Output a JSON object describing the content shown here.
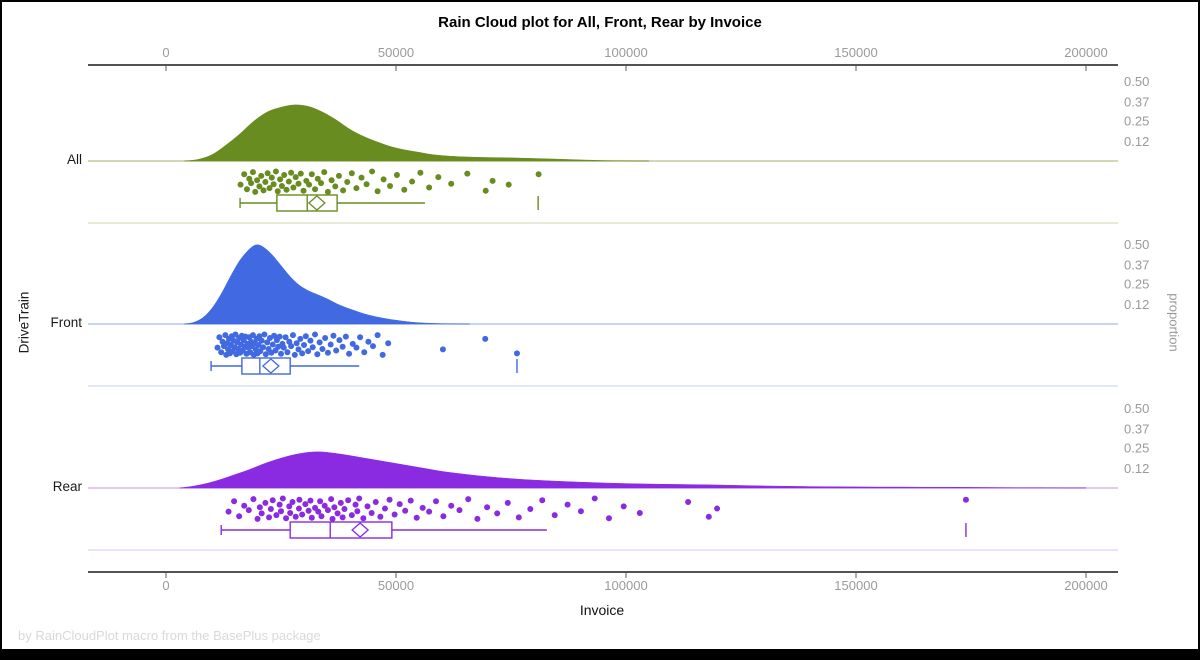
{
  "chart_data": {
    "type": "raincloud",
    "title": "Rain Cloud plot for All, Front, Rear by Invoice",
    "xlabel": "Invoice",
    "ylabel_left": "DriveTrain",
    "ylabel_right": "proportion",
    "footnote": "by RainCloudPlot macro from the BasePlus package",
    "x_ticks": [
      0,
      50000,
      100000,
      150000,
      200000
    ],
    "xlim": [
      -17000,
      207500
    ],
    "proportion_tick_labels": [
      "0.50",
      "0.37",
      "0.25",
      "0.12"
    ],
    "proportion_ticks": [
      0.5,
      0.37,
      0.25,
      0.12
    ],
    "grid": false,
    "legend": "none",
    "axis_text_color": "#9a9a9a",
    "jitter_cycle": [
      0.62,
      0.15,
      0.83,
      0.35,
      0.55,
      0.05,
      0.95,
      0.42,
      0.7,
      0.22,
      0.88,
      0.5,
      0.1,
      0.78,
      0.3,
      0.6,
      0.02,
      0.92,
      0.38,
      0.68,
      0.18,
      0.85,
      0.48,
      0.08,
      0.75,
      0.28,
      0.58,
      0.12,
      0.9,
      0.45
    ],
    "groups": [
      {
        "name": "All",
        "color": "#698C21",
        "light_color": "#c3ca9c",
        "density": [
          [
            4000,
            0
          ],
          [
            7000,
            0.01
          ],
          [
            10000,
            0.04
          ],
          [
            13000,
            0.1
          ],
          [
            16000,
            0.17
          ],
          [
            19000,
            0.25
          ],
          [
            22000,
            0.31
          ],
          [
            25000,
            0.34
          ],
          [
            28000,
            0.355
          ],
          [
            31000,
            0.345
          ],
          [
            34000,
            0.31
          ],
          [
            37000,
            0.26
          ],
          [
            40000,
            0.2
          ],
          [
            43000,
            0.155
          ],
          [
            46000,
            0.12
          ],
          [
            49000,
            0.09
          ],
          [
            52000,
            0.07
          ],
          [
            55000,
            0.055
          ],
          [
            58000,
            0.04
          ],
          [
            62000,
            0.03
          ],
          [
            66000,
            0.025
          ],
          [
            70000,
            0.022
          ],
          [
            75000,
            0.02
          ],
          [
            80000,
            0.016
          ],
          [
            85000,
            0.012
          ],
          [
            90000,
            0.007
          ],
          [
            95000,
            0.003
          ],
          [
            100000,
            0.001
          ],
          [
            105000,
            0
          ]
        ],
        "box": {
          "whisker_low": 16100,
          "q1": 24100,
          "median": 30700,
          "mean": 32800,
          "q3": 37200,
          "whisker_high": 56300,
          "far_value": 80900
        },
        "points": [
          16200,
          17000,
          17600,
          18100,
          18500,
          18900,
          19400,
          19800,
          20300,
          20700,
          21200,
          21600,
          22100,
          22500,
          23000,
          23400,
          23900,
          24300,
          24800,
          25200,
          25700,
          26200,
          26700,
          27200,
          27700,
          28200,
          28800,
          29300,
          29900,
          30500,
          31100,
          31700,
          32400,
          33000,
          33700,
          34400,
          35200,
          36000,
          36800,
          37600,
          38500,
          39400,
          40400,
          41400,
          42500,
          43600,
          44800,
          46000,
          47300,
          48700,
          50200,
          51800,
          53500,
          55300,
          57200,
          59200,
          62000,
          65500,
          69500,
          71000,
          74500,
          81000
        ]
      },
      {
        "name": "Front",
        "color": "#4169E1",
        "light_color": "#b6c5ef",
        "density": [
          [
            4000,
            0
          ],
          [
            6000,
            0.01
          ],
          [
            8000,
            0.04
          ],
          [
            10000,
            0.1
          ],
          [
            12000,
            0.19
          ],
          [
            14000,
            0.3
          ],
          [
            16000,
            0.4
          ],
          [
            18000,
            0.47
          ],
          [
            19500,
            0.5
          ],
          [
            21000,
            0.49
          ],
          [
            23000,
            0.44
          ],
          [
            25000,
            0.37
          ],
          [
            27000,
            0.3
          ],
          [
            29000,
            0.245
          ],
          [
            31000,
            0.21
          ],
          [
            33000,
            0.185
          ],
          [
            35000,
            0.16
          ],
          [
            37000,
            0.13
          ],
          [
            39000,
            0.105
          ],
          [
            41000,
            0.085
          ],
          [
            43000,
            0.065
          ],
          [
            45000,
            0.05
          ],
          [
            47000,
            0.038
          ],
          [
            49000,
            0.028
          ],
          [
            51000,
            0.02
          ],
          [
            53000,
            0.013
          ],
          [
            55000,
            0.008
          ],
          [
            58000,
            0.004
          ],
          [
            62000,
            0.001
          ],
          [
            66000,
            0
          ]
        ],
        "box": {
          "whisker_low": 9800,
          "q1": 16500,
          "median": 20400,
          "mean": 22800,
          "q3": 27000,
          "whisker_high": 42000,
          "far_value": 76300
        },
        "points": [
          11200,
          11600,
          12000,
          12300,
          12600,
          12900,
          13100,
          13300,
          13500,
          13700,
          13900,
          14100,
          14300,
          14500,
          14700,
          14900,
          15100,
          15300,
          15500,
          15700,
          15900,
          16100,
          16300,
          16500,
          16700,
          16900,
          17100,
          17300,
          17500,
          17700,
          17900,
          18100,
          18300,
          18500,
          18700,
          18900,
          19100,
          19300,
          19500,
          19700,
          19900,
          20100,
          20300,
          20500,
          20800,
          21100,
          21400,
          21700,
          22000,
          22300,
          22600,
          22900,
          23200,
          23500,
          23800,
          24100,
          24400,
          24700,
          25000,
          25300,
          25600,
          26000,
          26400,
          26800,
          27200,
          27600,
          28000,
          28400,
          28800,
          29200,
          29600,
          30000,
          30400,
          30900,
          31400,
          31900,
          32400,
          32900,
          33400,
          34000,
          34600,
          35200,
          35800,
          36400,
          37000,
          37700,
          38400,
          39100,
          39800,
          40600,
          41400,
          42200,
          43100,
          44000,
          45000,
          46000,
          47100,
          48300,
          60200,
          69400,
          76300
        ]
      },
      {
        "name": "Rear",
        "color": "#8A2BE2",
        "light_color": "#d7b6f2",
        "density": [
          [
            3000,
            0
          ],
          [
            6000,
            0.012
          ],
          [
            9000,
            0.03
          ],
          [
            12000,
            0.055
          ],
          [
            15000,
            0.085
          ],
          [
            18000,
            0.115
          ],
          [
            21000,
            0.15
          ],
          [
            24000,
            0.18
          ],
          [
            27000,
            0.205
          ],
          [
            30000,
            0.222
          ],
          [
            32000,
            0.228
          ],
          [
            34000,
            0.228
          ],
          [
            36000,
            0.222
          ],
          [
            39000,
            0.21
          ],
          [
            42000,
            0.195
          ],
          [
            45000,
            0.18
          ],
          [
            48000,
            0.165
          ],
          [
            51000,
            0.15
          ],
          [
            54000,
            0.135
          ],
          [
            57000,
            0.12
          ],
          [
            60000,
            0.105
          ],
          [
            64000,
            0.09
          ],
          [
            68000,
            0.077
          ],
          [
            72000,
            0.066
          ],
          [
            76000,
            0.057
          ],
          [
            80000,
            0.05
          ],
          [
            85000,
            0.043
          ],
          [
            90000,
            0.037
          ],
          [
            95000,
            0.032
          ],
          [
            100000,
            0.028
          ],
          [
            105000,
            0.025
          ],
          [
            110000,
            0.023
          ],
          [
            115000,
            0.021
          ],
          [
            120000,
            0.019
          ],
          [
            125000,
            0.016
          ],
          [
            130000,
            0.013
          ],
          [
            135000,
            0.011
          ],
          [
            140000,
            0.009
          ],
          [
            145000,
            0.008
          ],
          [
            150000,
            0.007
          ],
          [
            155000,
            0.006
          ],
          [
            160000,
            0.006
          ],
          [
            165000,
            0.005
          ],
          [
            170000,
            0.005
          ],
          [
            175000,
            0.004
          ],
          [
            180000,
            0.003
          ],
          [
            185000,
            0.002
          ],
          [
            190000,
            0.002
          ],
          [
            195000,
            0.001
          ],
          [
            200000,
            0.001
          ]
        ],
        "box": {
          "whisker_low": 12000,
          "q1": 27000,
          "median": 35700,
          "mean": 42200,
          "q3": 49100,
          "whisker_high": 82800,
          "far_value": 173900
        },
        "points": [
          13600,
          14800,
          15900,
          17000,
          18000,
          19000,
          19900,
          20400,
          20800,
          21600,
          22400,
          22800,
          23200,
          24000,
          24700,
          25000,
          25400,
          26100,
          26800,
          27000,
          27500,
          28200,
          28900,
          29000,
          29600,
          30300,
          31000,
          31400,
          31700,
          32400,
          33100,
          33500,
          33800,
          34500,
          35200,
          35900,
          36200,
          36600,
          37300,
          38000,
          38400,
          38800,
          39600,
          40400,
          41200,
          41600,
          42000,
          42900,
          43800,
          44700,
          45600,
          46600,
          47600,
          48600,
          49700,
          50800,
          52000,
          53200,
          54500,
          55800,
          57200,
          58700,
          60300,
          62000,
          63800,
          65700,
          67700,
          69800,
          72000,
          74300,
          76700,
          79200,
          81800,
          84500,
          87300,
          90200,
          93200,
          96300,
          99500,
          103000,
          113500,
          118000,
          119800,
          173900
        ]
      }
    ]
  }
}
